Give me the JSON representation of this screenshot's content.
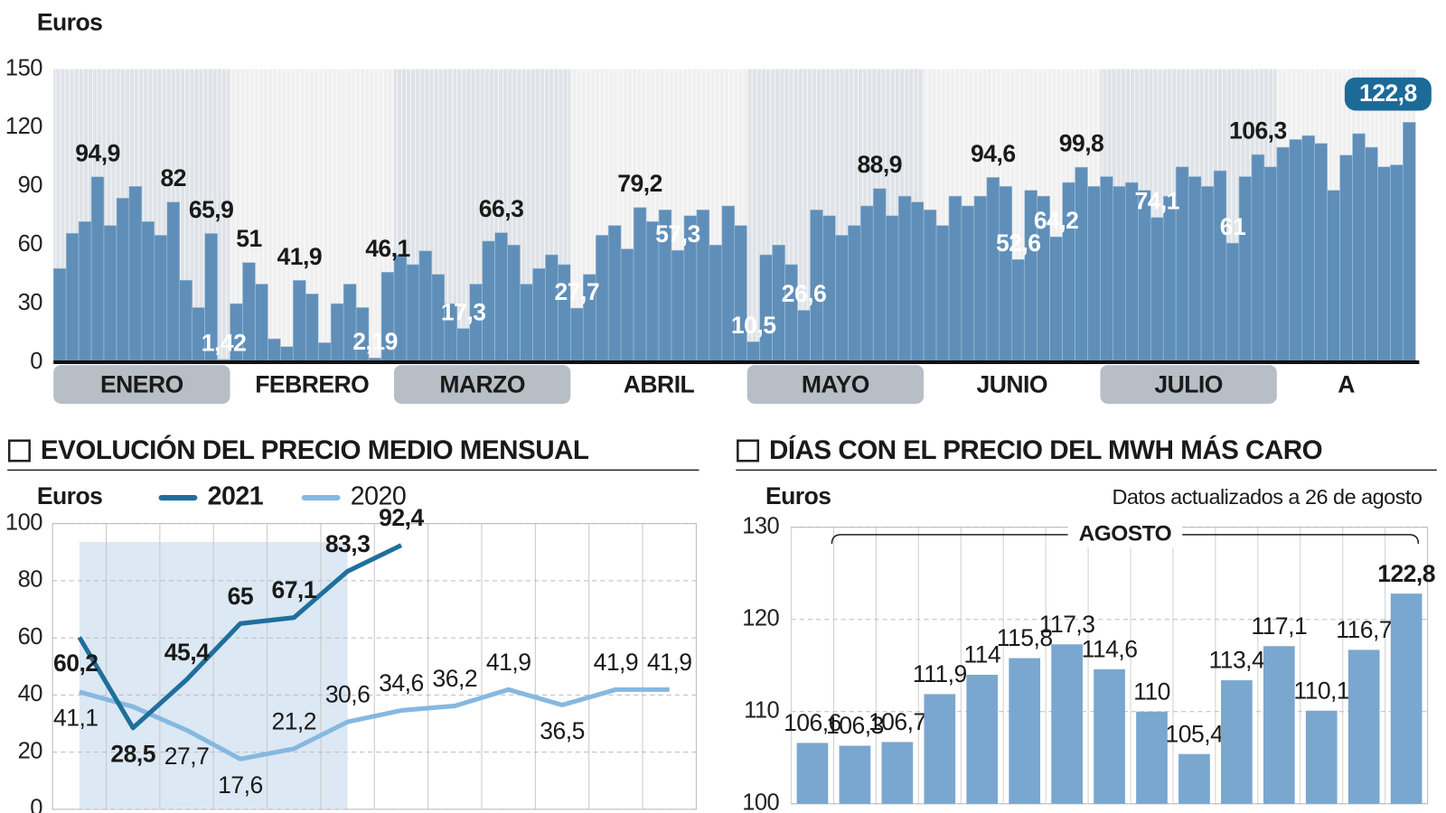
{
  "chart_data": [
    {
      "type": "bar",
      "y_label": "Euros",
      "color": "#5f8fb9",
      "ylim": [
        0,
        150
      ],
      "yticks": [
        0,
        30,
        60,
        90,
        120,
        150
      ],
      "grid": false,
      "months": [
        {
          "name": "ENERO",
          "values": [
            48,
            66,
            72,
            94.9,
            70,
            84,
            90,
            72,
            65,
            82,
            42,
            28,
            65.9,
            1.42
          ],
          "value_labels": [
            null,
            null,
            null,
            "94,9",
            null,
            null,
            null,
            null,
            null,
            "82",
            null,
            null,
            "65,9",
            "1,42"
          ]
        },
        {
          "name": "FEBRERO",
          "values": [
            30,
            51,
            40,
            12,
            8,
            41.9,
            35,
            10,
            30,
            40,
            28,
            2.19,
            46.1
          ],
          "value_labels": [
            null,
            "51",
            null,
            null,
            null,
            "41,9",
            null,
            null,
            null,
            null,
            null,
            "2,19",
            "46,1"
          ]
        },
        {
          "name": "MARZO",
          "values": [
            55,
            50,
            57,
            45,
            30,
            17.3,
            40,
            62,
            66.3,
            60,
            40,
            48,
            55,
            50
          ],
          "value_labels": [
            null,
            null,
            null,
            null,
            null,
            "17,3",
            null,
            null,
            "66,3",
            null,
            null,
            null,
            null,
            null
          ]
        },
        {
          "name": "ABRIL",
          "values": [
            27.7,
            45,
            65,
            70,
            58,
            79.2,
            72,
            78,
            57.3,
            75,
            78,
            60,
            80,
            70
          ],
          "value_labels": [
            "27,7",
            null,
            null,
            null,
            null,
            "79,2",
            null,
            null,
            "57,3",
            null,
            null,
            null,
            null,
            null
          ]
        },
        {
          "name": "MAYO",
          "values": [
            10.5,
            55,
            60,
            50,
            26.6,
            78,
            75,
            65,
            70,
            80,
            88.9,
            75,
            85,
            82
          ],
          "value_labels": [
            "10,5",
            null,
            null,
            null,
            "26,6",
            null,
            null,
            null,
            null,
            null,
            "88,9",
            null,
            null,
            null
          ]
        },
        {
          "name": "JUNIO",
          "values": [
            78,
            70,
            85,
            80,
            85,
            94.6,
            90,
            52.6,
            88,
            85,
            64.2,
            92,
            99.8,
            90
          ],
          "value_labels": [
            null,
            null,
            null,
            null,
            null,
            "94,6",
            null,
            "52,6",
            null,
            null,
            "64,2",
            null,
            "99,8",
            null
          ]
        },
        {
          "name": "JULIO",
          "values": [
            95,
            90,
            92,
            88,
            74.1,
            85,
            100,
            95,
            90,
            98,
            61,
            95,
            106.3,
            100
          ],
          "value_labels": [
            null,
            null,
            null,
            null,
            "74,1",
            null,
            null,
            null,
            null,
            null,
            "61",
            null,
            "106,3",
            null
          ]
        },
        {
          "name": "A",
          "values": [
            110,
            114,
            116,
            112,
            88,
            106,
            117,
            110,
            100,
            101,
            122.8
          ],
          "value_labels": [
            null,
            null,
            null,
            null,
            null,
            null,
            null,
            null,
            null,
            null,
            "122,8"
          ]
        }
      ]
    },
    {
      "type": "line",
      "title": "EVOLUCIÓN DEL PRECIO MEDIO MENSUAL",
      "y_label": "Euros",
      "ylim": [
        0,
        100
      ],
      "yticks": [
        0,
        20,
        40,
        60,
        80,
        100
      ],
      "grid": true,
      "categories": [
        null,
        null,
        null,
        null,
        null,
        null,
        null,
        null,
        null,
        null,
        null,
        null
      ],
      "series": [
        {
          "name": "2021",
          "color": "#1f6f9c",
          "values": [
            60.2,
            28.5,
            45.4,
            65,
            67.1,
            83.3,
            92.4,
            null,
            null,
            null,
            null,
            null
          ],
          "value_labels": [
            "60,2",
            "28,5",
            "45,4",
            "65",
            "67,1",
            "83,3",
            "92,4",
            null,
            null,
            null,
            null,
            null
          ]
        },
        {
          "name": "2020",
          "color": "#86b8e0",
          "values": [
            41.1,
            35.9,
            27.7,
            17.6,
            21.2,
            30.6,
            34.6,
            36.2,
            41.9,
            36.5,
            41.9,
            41.9
          ],
          "value_labels": [
            "41,1",
            null,
            "27,7",
            "17,6",
            "21,2",
            "30,6",
            "34,6",
            "36,2",
            "41,9",
            "36,5",
            "41,9",
            "41,9"
          ]
        }
      ]
    },
    {
      "type": "bar",
      "title": "DÍAS CON EL PRECIO DEL MWH MÁS CARO",
      "y_label": "Euros",
      "subtitle": "Datos actualizados a 26 de agosto",
      "bracket_label": "AGOSTO",
      "color": "#7aa7d0",
      "ylim": [
        100,
        130
      ],
      "yticks": [
        100,
        110,
        120,
        130
      ],
      "grid": true,
      "categories": [
        null,
        null,
        null,
        null,
        null,
        null,
        null,
        null,
        null,
        null,
        null,
        null,
        null,
        null,
        null
      ],
      "values": [
        106.6,
        106.3,
        106.7,
        111.9,
        114,
        115.8,
        117.3,
        114.6,
        110,
        105.4,
        113.4,
        117.1,
        110.1,
        116.7,
        122.8
      ],
      "value_labels": [
        "106,6",
        "106,3",
        "106,7",
        "111,9",
        "114",
        "115,8",
        "117,3",
        "114,6",
        "110",
        "105,4",
        "113,4",
        "117,1",
        "110,1",
        "116,7",
        "122,8"
      ]
    }
  ]
}
